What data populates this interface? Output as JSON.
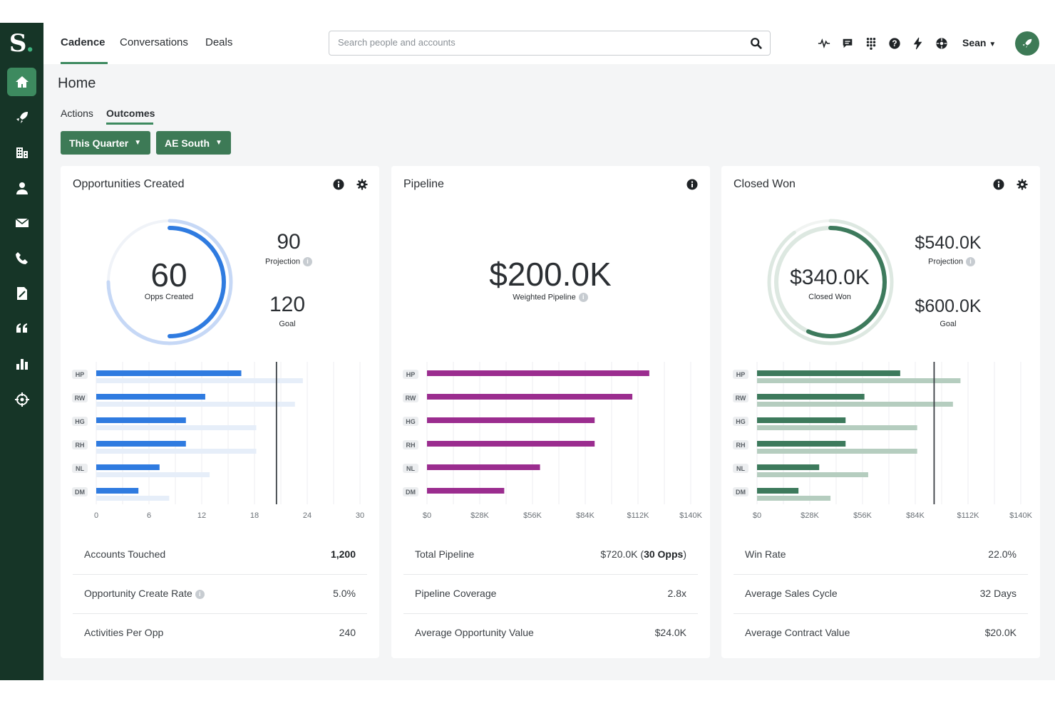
{
  "sidebar": {
    "logo_letter": "S",
    "logo_dot": ".",
    "items": [
      {
        "icon": "home-icon",
        "active": true
      },
      {
        "icon": "rocket-icon",
        "active": false
      },
      {
        "icon": "building-icon",
        "active": false
      },
      {
        "icon": "person-icon",
        "active": false
      },
      {
        "icon": "mail-icon",
        "active": false
      },
      {
        "icon": "phone-icon",
        "active": false
      },
      {
        "icon": "document-icon",
        "active": false
      },
      {
        "icon": "quote-icon",
        "active": false
      },
      {
        "icon": "bar-chart-icon",
        "active": false
      },
      {
        "icon": "crosshair-icon",
        "active": false
      }
    ]
  },
  "topbar": {
    "tabs": [
      {
        "label": "Cadence",
        "active": true
      },
      {
        "label": "Conversations",
        "active": false
      },
      {
        "label": "Deals",
        "active": false
      }
    ],
    "search_placeholder": "Search people and accounts",
    "icons": [
      "activity-icon",
      "chat-icon",
      "apps-grid-icon",
      "help-icon",
      "lightning-icon",
      "settings-gear-icon"
    ],
    "user_name": "Sean",
    "accent": "#3d7a56"
  },
  "page": {
    "title": "Home",
    "subtabs": [
      {
        "label": "Actions",
        "active": false
      },
      {
        "label": "Outcomes",
        "active": true
      }
    ],
    "filters": [
      {
        "label": "This Quarter"
      },
      {
        "label": "AE South"
      }
    ]
  },
  "cards": [
    {
      "title": "Opportunities Created",
      "metric": {
        "value": "60",
        "label": "Opps Created",
        "projection": "90",
        "projection_label": "Projection",
        "goal": "120",
        "goal_label": "Goal",
        "progress": 0.5,
        "projection_progress": 0.75
      },
      "stats": [
        {
          "label": "Accounts Touched",
          "value": "1,200",
          "info": false
        },
        {
          "label": "Opportunity Create Rate",
          "value": "5.0%",
          "info": true
        },
        {
          "label": "Activities Per Opp",
          "value": "240",
          "info": false
        }
      ]
    },
    {
      "title": "Pipeline",
      "metric": {
        "value": "$200.0K",
        "label": "Weighted Pipeline"
      },
      "stats": [
        {
          "label": "Total Pipeline",
          "value": "$720.0K",
          "value_bold": "30 Opps",
          "info": false
        },
        {
          "label": "Pipeline Coverage",
          "value": "2.8x",
          "info": false
        },
        {
          "label": "Average Opportunity Value",
          "value": "$24.0K",
          "info": false
        }
      ]
    },
    {
      "title": "Closed Won",
      "metric": {
        "value": "$340.0K",
        "label": "Closed Won",
        "projection": "$540.0K",
        "projection_label": "Projection",
        "goal": "$600.0K",
        "goal_label": "Goal",
        "progress": 0.567,
        "projection_progress": 0.9
      },
      "stats": [
        {
          "label": "Win Rate",
          "value": "22.0%",
          "info": false
        },
        {
          "label": "Average Sales Cycle",
          "value": "32 Days",
          "info": false
        },
        {
          "label": "Average Contract Value",
          "value": "$20.0K",
          "info": false
        }
      ]
    }
  ],
  "chart_data": [
    {
      "type": "bar",
      "categories": [
        "HP",
        "RW",
        "HG",
        "RH",
        "NL",
        "DM"
      ],
      "series": [
        {
          "values": [
            16.5,
            12.4,
            10.2,
            10.2,
            7.2,
            4.8
          ],
          "color": "#2f7be0"
        },
        {
          "values": [
            23.5,
            22.6,
            18.2,
            18.2,
            12.9,
            8.3
          ],
          "color": "#e6eef9"
        }
      ],
      "xticks": [
        "0",
        "6",
        "12",
        "18",
        "24",
        "30"
      ],
      "xlim": [
        0,
        30
      ],
      "reference_line": 20.5
    },
    {
      "type": "bar",
      "categories": [
        "HP",
        "RW",
        "HG",
        "RH",
        "NL",
        "DM"
      ],
      "series": [
        {
          "values": [
            118,
            109,
            89,
            89,
            60,
            41
          ],
          "color": "#9b2d8f"
        }
      ],
      "xticks": [
        "$0",
        "$28K",
        "$56K",
        "$84K",
        "$112K",
        "$140K"
      ],
      "xlim": [
        0,
        140
      ]
    },
    {
      "type": "bar",
      "categories": [
        "HP",
        "RW",
        "HG",
        "RH",
        "NL",
        "DM"
      ],
      "series": [
        {
          "values": [
            76,
            57,
            47,
            47,
            33,
            22
          ],
          "color": "#3d7a5c"
        },
        {
          "values": [
            108,
            104,
            85,
            85,
            59,
            39
          ],
          "color": "#b5cdbf"
        }
      ],
      "xticks": [
        "$0",
        "$28K",
        "$56K",
        "$84K",
        "$112K",
        "$140K"
      ],
      "xlim": [
        0,
        140
      ],
      "reference_line": 94
    }
  ]
}
